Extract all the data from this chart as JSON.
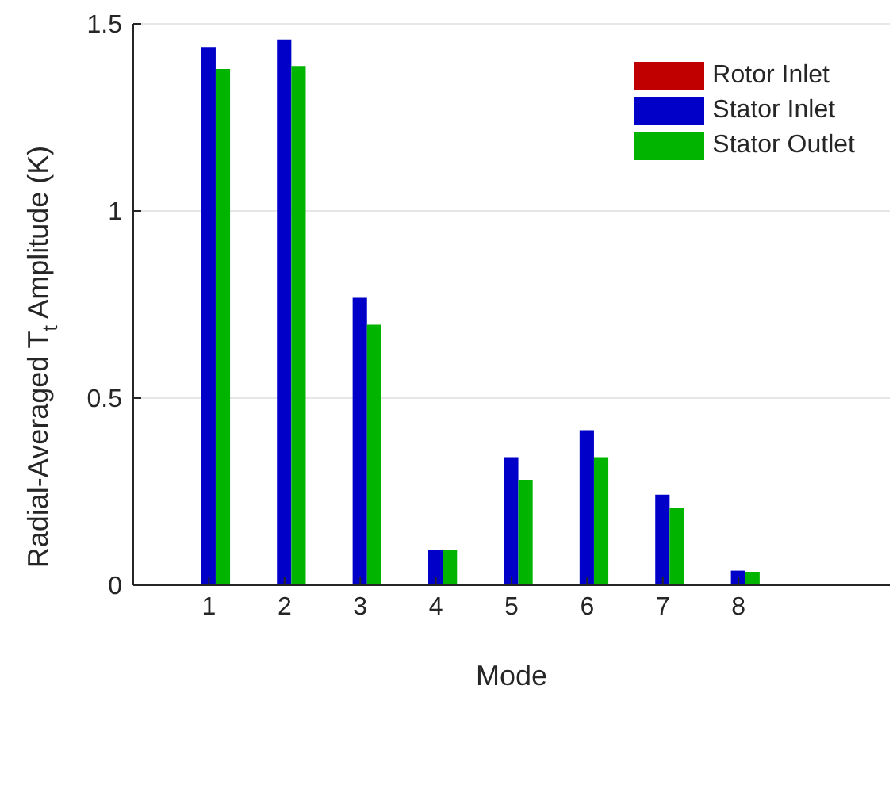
{
  "chart_data": {
    "type": "bar",
    "xlabel": "Mode",
    "ylabel": "Radial-Averaged T$_{t}$ Amplitude (K)",
    "x": [
      1,
      2,
      3,
      4,
      5,
      6,
      7,
      8
    ],
    "series": [
      {
        "name": "Rotor Inlet",
        "color": "#c00000",
        "values": [
          0,
          0,
          0,
          0,
          0,
          0,
          0,
          0
        ]
      },
      {
        "name": "Stator Inlet",
        "color": "#0000c8",
        "values": [
          1.438,
          1.458,
          0.768,
          0.095,
          0.342,
          0.414,
          0.242,
          0.039
        ]
      },
      {
        "name": "Stator Outlet",
        "color": "#00b400",
        "values": [
          1.379,
          1.387,
          0.696,
          0.095,
          0.282,
          0.342,
          0.206,
          0.036
        ]
      }
    ],
    "xlim": [
      0,
      10
    ],
    "xticks": [
      1,
      2,
      3,
      4,
      5,
      6,
      7,
      8
    ],
    "ylim": [
      0,
      1.5
    ],
    "yticks": [
      0,
      0.5,
      1,
      1.5
    ],
    "grid": "y",
    "legend": "top right"
  }
}
